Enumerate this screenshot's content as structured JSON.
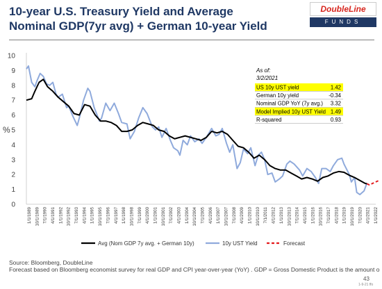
{
  "header": {
    "title_line1": "10-year U.S. Treasury Yield and Average",
    "title_line2": "Nominal GDP(7yr avg) + German 10-year Yield",
    "logo_top": "DoubleLine",
    "logo_bottom": "FUNDS"
  },
  "footer": {
    "source": "Source: Bloomberg, DoubleLine",
    "note": "Forecast based on Bloomberg economist survey for real GDP and CPI year-over-year (YoY) . GDP = Gross Domestic Product is the amount o",
    "page_number": "43",
    "code": "1-9-21 ffo"
  },
  "colors": {
    "avg": "#000000",
    "ust": "#8faadc",
    "forecast": "#e31a1c",
    "highlight": "#ffff00",
    "title": "#1f3864"
  },
  "stats_table": {
    "as_of_label": "As of:",
    "as_of_date": "3/2/2021",
    "rows": [
      {
        "label": "US 10y UST yield",
        "value": "1.42",
        "highlight": true
      },
      {
        "label": "German 10y yield",
        "value": "-0.34",
        "highlight": false
      },
      {
        "label": "Nominal GDP YoY (7y avg.)",
        "value": "3.32",
        "highlight": false
      },
      {
        "label": "Model Implied 10y UST Yield",
        "value": "1.49",
        "highlight": true
      },
      {
        "label": "R-squared",
        "value": "0.93",
        "highlight": false
      }
    ]
  },
  "chart_data": {
    "type": "line",
    "ylabel": "%",
    "ylim": [
      0,
      10
    ],
    "yticks": [
      0,
      1,
      2,
      3,
      4,
      5,
      6,
      7,
      8,
      9,
      10
    ],
    "xlim": [
      1989.0,
      2022.0
    ],
    "grid": false,
    "legend_position": "bottom",
    "x_tick_labels": [
      "1/1/1989",
      "10/1/1989",
      "7/1/1990",
      "4/1/1991",
      "1/1/1992",
      "10/1/1992",
      "7/1/1993",
      "4/1/1994",
      "1/1/1995",
      "10/1/1995",
      "7/1/1996",
      "4/1/1997",
      "1/1/1998",
      "10/1/1998",
      "7/1/1999",
      "4/1/2000",
      "1/1/2001",
      "10/1/2001",
      "7/1/2002",
      "4/1/2003",
      "1/1/2004",
      "10/1/2004",
      "7/1/2005",
      "4/1/2006",
      "1/1/2007",
      "10/1/2007",
      "7/1/2008",
      "4/1/2009",
      "1/1/2010",
      "10/1/2010",
      "7/1/2011",
      "4/1/2012",
      "1/1/2013",
      "10/1/2013",
      "7/1/2014",
      "4/1/2015",
      "1/1/2016",
      "10/1/2016",
      "7/1/2017",
      "4/1/2018",
      "1/1/2019",
      "10/1/2019",
      "7/1/2020",
      "4/1/2021",
      "1/1/2022"
    ],
    "series": [
      {
        "name": "Avg (Nom GDP 7y avg. + German 10y)",
        "style": "solid",
        "points": [
          [
            1989.0,
            7.0
          ],
          [
            1989.5,
            7.1
          ],
          [
            1989.8,
            7.6
          ],
          [
            1990.2,
            8.2
          ],
          [
            1990.6,
            8.4
          ],
          [
            1991.0,
            7.9
          ],
          [
            1991.5,
            7.6
          ],
          [
            1992.0,
            7.2
          ],
          [
            1992.5,
            6.9
          ],
          [
            1993.0,
            6.6
          ],
          [
            1993.5,
            6.1
          ],
          [
            1994.0,
            6.0
          ],
          [
            1994.5,
            6.7
          ],
          [
            1995.0,
            6.6
          ],
          [
            1995.5,
            6.0
          ],
          [
            1996.0,
            5.6
          ],
          [
            1996.5,
            5.6
          ],
          [
            1997.0,
            5.5
          ],
          [
            1997.5,
            5.3
          ],
          [
            1998.0,
            4.9
          ],
          [
            1998.5,
            4.9
          ],
          [
            1999.0,
            5.0
          ],
          [
            1999.5,
            5.3
          ],
          [
            2000.0,
            5.5
          ],
          [
            2000.5,
            5.4
          ],
          [
            2001.0,
            5.3
          ],
          [
            2001.5,
            5.0
          ],
          [
            2002.0,
            4.9
          ],
          [
            2002.5,
            4.6
          ],
          [
            2003.0,
            4.4
          ],
          [
            2003.5,
            4.5
          ],
          [
            2004.0,
            4.6
          ],
          [
            2004.5,
            4.5
          ],
          [
            2005.0,
            4.4
          ],
          [
            2005.5,
            4.3
          ],
          [
            2006.0,
            4.5
          ],
          [
            2006.5,
            4.9
          ],
          [
            2007.0,
            4.8
          ],
          [
            2007.5,
            4.9
          ],
          [
            2008.0,
            4.7
          ],
          [
            2008.5,
            4.3
          ],
          [
            2009.0,
            3.9
          ],
          [
            2009.5,
            3.8
          ],
          [
            2010.0,
            3.5
          ],
          [
            2010.5,
            3.1
          ],
          [
            2011.0,
            3.3
          ],
          [
            2011.5,
            3.0
          ],
          [
            2012.0,
            2.6
          ],
          [
            2012.5,
            2.4
          ],
          [
            2013.0,
            2.3
          ],
          [
            2013.5,
            2.3
          ],
          [
            2014.0,
            2.1
          ],
          [
            2014.5,
            1.9
          ],
          [
            2015.0,
            1.7
          ],
          [
            2015.5,
            1.8
          ],
          [
            2016.0,
            1.7
          ],
          [
            2016.5,
            1.55
          ],
          [
            2017.0,
            1.8
          ],
          [
            2017.5,
            1.9
          ],
          [
            2018.0,
            2.1
          ],
          [
            2018.5,
            2.2
          ],
          [
            2019.0,
            2.15
          ],
          [
            2019.5,
            1.95
          ],
          [
            2020.0,
            1.8
          ],
          [
            2020.5,
            1.6
          ],
          [
            2021.0,
            1.4
          ],
          [
            2021.17,
            1.38
          ]
        ]
      },
      {
        "name": "10y UST Yield",
        "style": "solid",
        "points": [
          [
            1989.0,
            9.1
          ],
          [
            1989.2,
            9.3
          ],
          [
            1989.5,
            8.2
          ],
          [
            1989.8,
            7.9
          ],
          [
            1990.0,
            8.3
          ],
          [
            1990.3,
            8.8
          ],
          [
            1990.6,
            8.6
          ],
          [
            1990.9,
            8.1
          ],
          [
            1991.2,
            8.0
          ],
          [
            1991.5,
            8.2
          ],
          [
            1991.8,
            7.4
          ],
          [
            1992.0,
            7.2
          ],
          [
            1992.4,
            7.4
          ],
          [
            1992.8,
            6.5
          ],
          [
            1993.0,
            6.6
          ],
          [
            1993.4,
            5.9
          ],
          [
            1993.8,
            5.3
          ],
          [
            1994.0,
            5.8
          ],
          [
            1994.4,
            7.0
          ],
          [
            1994.8,
            7.8
          ],
          [
            1995.0,
            7.6
          ],
          [
            1995.4,
            6.5
          ],
          [
            1995.9,
            5.6
          ],
          [
            1996.1,
            5.8
          ],
          [
            1996.5,
            6.8
          ],
          [
            1996.9,
            6.3
          ],
          [
            1997.3,
            6.8
          ],
          [
            1997.7,
            6.1
          ],
          [
            1998.0,
            5.5
          ],
          [
            1998.5,
            5.4
          ],
          [
            1998.8,
            4.4
          ],
          [
            1999.2,
            4.9
          ],
          [
            1999.6,
            5.8
          ],
          [
            2000.0,
            6.5
          ],
          [
            2000.4,
            6.1
          ],
          [
            2000.9,
            5.2
          ],
          [
            2001.2,
            5.0
          ],
          [
            2001.5,
            5.2
          ],
          [
            2001.8,
            4.5
          ],
          [
            2002.2,
            5.1
          ],
          [
            2002.6,
            4.3
          ],
          [
            2002.9,
            3.8
          ],
          [
            2003.3,
            3.6
          ],
          [
            2003.5,
            3.3
          ],
          [
            2003.8,
            4.3
          ],
          [
            2004.2,
            4.0
          ],
          [
            2004.5,
            4.6
          ],
          [
            2004.9,
            4.2
          ],
          [
            2005.3,
            4.4
          ],
          [
            2005.6,
            4.1
          ],
          [
            2006.0,
            4.5
          ],
          [
            2006.5,
            5.1
          ],
          [
            2006.9,
            4.6
          ],
          [
            2007.2,
            4.7
          ],
          [
            2007.5,
            5.1
          ],
          [
            2007.9,
            4.1
          ],
          [
            2008.2,
            3.5
          ],
          [
            2008.5,
            4.0
          ],
          [
            2008.9,
            2.4
          ],
          [
            2009.2,
            2.8
          ],
          [
            2009.5,
            3.7
          ],
          [
            2009.9,
            3.4
          ],
          [
            2010.2,
            3.8
          ],
          [
            2010.6,
            2.6
          ],
          [
            2010.9,
            3.3
          ],
          [
            2011.2,
            3.5
          ],
          [
            2011.5,
            3.0
          ],
          [
            2011.8,
            2.0
          ],
          [
            2012.2,
            2.1
          ],
          [
            2012.5,
            1.5
          ],
          [
            2012.9,
            1.7
          ],
          [
            2013.2,
            1.9
          ],
          [
            2013.6,
            2.7
          ],
          [
            2013.9,
            2.9
          ],
          [
            2014.3,
            2.7
          ],
          [
            2014.8,
            2.3
          ],
          [
            2015.1,
            1.9
          ],
          [
            2015.5,
            2.4
          ],
          [
            2015.9,
            2.2
          ],
          [
            2016.3,
            1.8
          ],
          [
            2016.6,
            1.4
          ],
          [
            2016.9,
            2.4
          ],
          [
            2017.3,
            2.4
          ],
          [
            2017.7,
            2.2
          ],
          [
            2018.0,
            2.6
          ],
          [
            2018.4,
            3.0
          ],
          [
            2018.8,
            3.1
          ],
          [
            2019.0,
            2.7
          ],
          [
            2019.5,
            2.0
          ],
          [
            2019.7,
            1.5
          ],
          [
            2020.0,
            1.8
          ],
          [
            2020.2,
            0.8
          ],
          [
            2020.5,
            0.65
          ],
          [
            2020.9,
            0.9
          ],
          [
            2021.17,
            1.42
          ]
        ]
      },
      {
        "name": "Forecast",
        "style": "dashed",
        "points": [
          [
            2021.17,
            1.38
          ],
          [
            2021.4,
            1.3
          ],
          [
            2021.7,
            1.4
          ],
          [
            2022.0,
            1.5
          ],
          [
            2022.3,
            1.6
          ]
        ]
      }
    ]
  }
}
